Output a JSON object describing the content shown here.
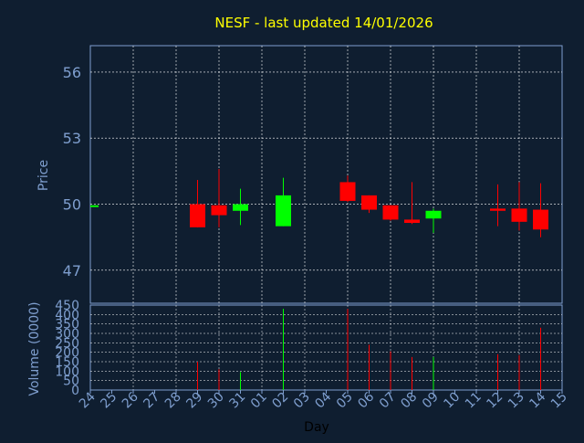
{
  "chart_data": [
    {
      "type": "candlestick",
      "title": "NESF - last updated 14/01/2026",
      "ylabel": "Price",
      "ylim": [
        45.5,
        57.2
      ],
      "y_ticks": [
        47,
        50,
        53,
        56
      ],
      "x_tick_labels": [
        "24",
        "25",
        "26",
        "27",
        "28",
        "29",
        "30",
        "31",
        "01",
        "02",
        "03",
        "04",
        "05",
        "06",
        "07",
        "08",
        "09",
        "10",
        "11",
        "12",
        "13",
        "14",
        "15"
      ],
      "grid": true,
      "colors": {
        "up": "#00ff00",
        "down": "#ff0000",
        "flat": "#00ff00",
        "title": "#ffff00",
        "axis_text": "#7f9fcf",
        "grid": "#ffffff"
      },
      "candles": [
        {
          "day": "24",
          "open": 49.95,
          "high": 49.95,
          "low": 49.95,
          "close": 49.95
        },
        {
          "day": "29",
          "open": 50.0,
          "high": 51.1,
          "low": 48.95,
          "close": 48.95
        },
        {
          "day": "30",
          "open": 49.95,
          "high": 51.6,
          "low": 48.95,
          "close": 49.5
        },
        {
          "day": "31",
          "open": 49.7,
          "high": 50.7,
          "low": 49.05,
          "close": 50.0
        },
        {
          "day": "02",
          "open": 49.0,
          "high": 51.2,
          "low": 49.0,
          "close": 50.4
        },
        {
          "day": "05",
          "open": 51.0,
          "high": 51.3,
          "low": 50.1,
          "close": 50.15
        },
        {
          "day": "06",
          "open": 50.4,
          "high": 50.4,
          "low": 49.6,
          "close": 49.75
        },
        {
          "day": "07",
          "open": 49.95,
          "high": 49.95,
          "low": 49.25,
          "close": 49.3
        },
        {
          "day": "08",
          "open": 49.3,
          "high": 51.0,
          "low": 49.1,
          "close": 49.15
        },
        {
          "day": "09",
          "open": 49.35,
          "high": 49.8,
          "low": 48.7,
          "close": 49.7
        },
        {
          "day": "12",
          "open": 49.8,
          "high": 50.9,
          "low": 49.0,
          "close": 49.7
        },
        {
          "day": "13",
          "open": 49.8,
          "high": 51.0,
          "low": 48.8,
          "close": 49.2
        },
        {
          "day": "14",
          "open": 49.75,
          "high": 50.95,
          "low": 48.5,
          "close": 48.85
        }
      ]
    },
    {
      "type": "bar",
      "xlabel": "Day",
      "ylabel": "Volume (0000)",
      "ylim": [
        0,
        450
      ],
      "y_ticks": [
        0,
        50,
        100,
        150,
        200,
        250,
        300,
        350,
        400,
        450
      ],
      "categories": [
        "29",
        "30",
        "31",
        "02",
        "05",
        "06",
        "07",
        "08",
        "09",
        "12",
        "13",
        "14"
      ],
      "values": [
        150,
        110,
        95,
        430,
        430,
        240,
        205,
        175,
        175,
        190,
        185,
        330
      ],
      "bar_colors": [
        "down",
        "down",
        "up",
        "up",
        "down",
        "down",
        "down",
        "down",
        "up",
        "down",
        "down",
        "down"
      ]
    }
  ]
}
